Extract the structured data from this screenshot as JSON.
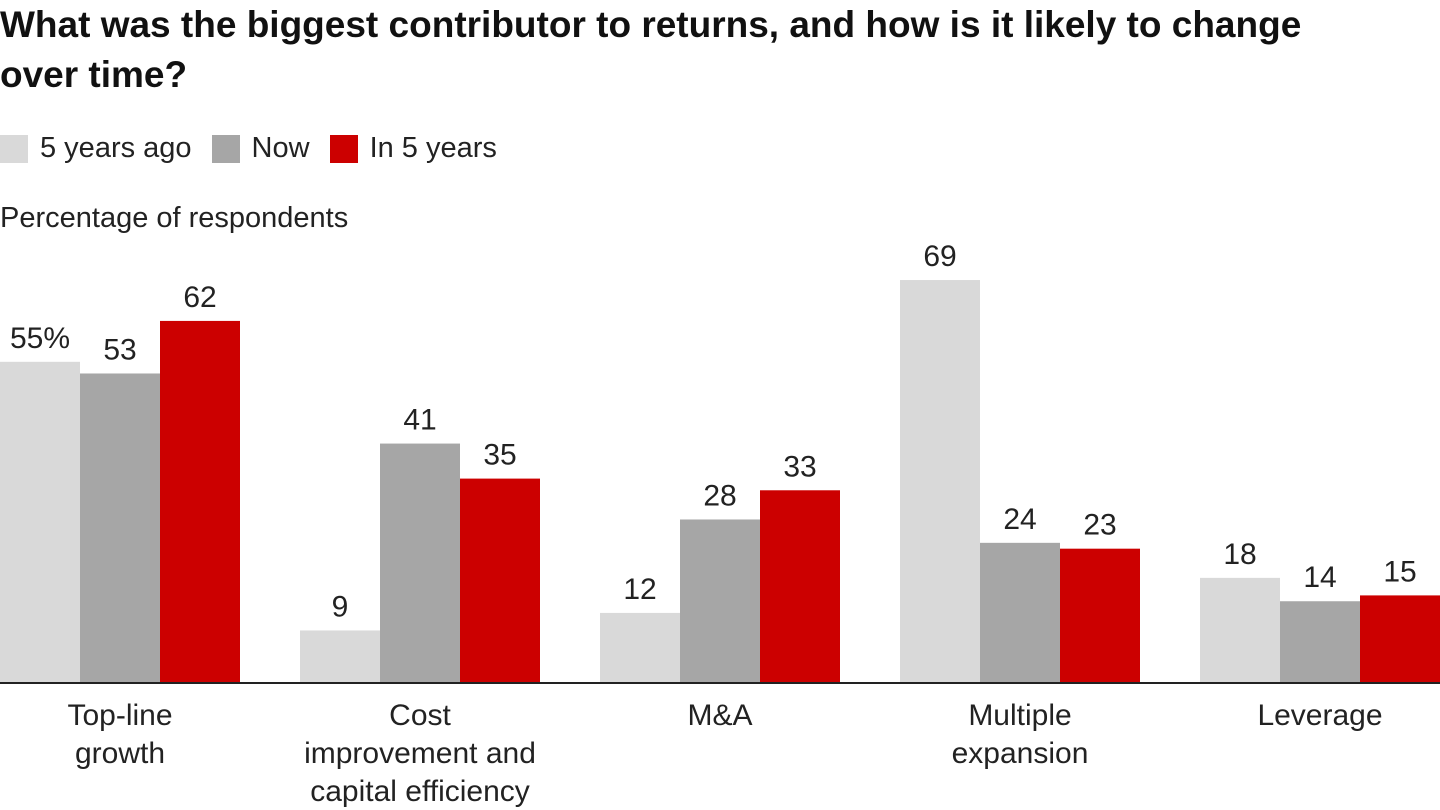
{
  "chart_data": {
    "type": "bar",
    "title": "What was the biggest contributor to returns, and how is it likely to change over time?",
    "subtitle": "Percentage of respondents",
    "categories": [
      [
        "Top-line",
        "growth"
      ],
      [
        "Cost",
        "improvement and",
        "capital efficiency"
      ],
      [
        "M&A"
      ],
      [
        "Multiple",
        "expansion"
      ],
      [
        "Leverage"
      ]
    ],
    "series": [
      {
        "name": "5 years ago",
        "color": "#d9d9d9",
        "values": [
          55,
          9,
          12,
          69,
          18
        ],
        "value_labels": [
          "55%",
          "9",
          "12",
          "69",
          "18"
        ]
      },
      {
        "name": "Now",
        "color": "#a6a6a6",
        "values": [
          53,
          41,
          28,
          24,
          14
        ]
      },
      {
        "name": "In 5 years",
        "color": "#cc0000",
        "values": [
          62,
          35,
          33,
          23,
          15
        ]
      }
    ]
  }
}
